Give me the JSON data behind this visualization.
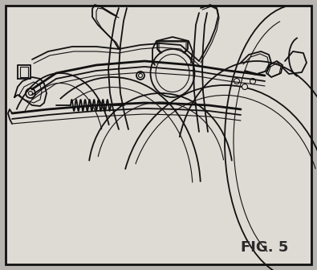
{
  "title": "FIG. 5",
  "title_fontsize": 13,
  "title_fontweight": "bold",
  "title_color": "#2a2a2a",
  "bg_outer": "#b8b4b0",
  "bg_inner": "#dedad4",
  "border_color": "#111111",
  "line_color": "#111111",
  "fig_width": 3.95,
  "fig_height": 3.36,
  "dpi": 100
}
